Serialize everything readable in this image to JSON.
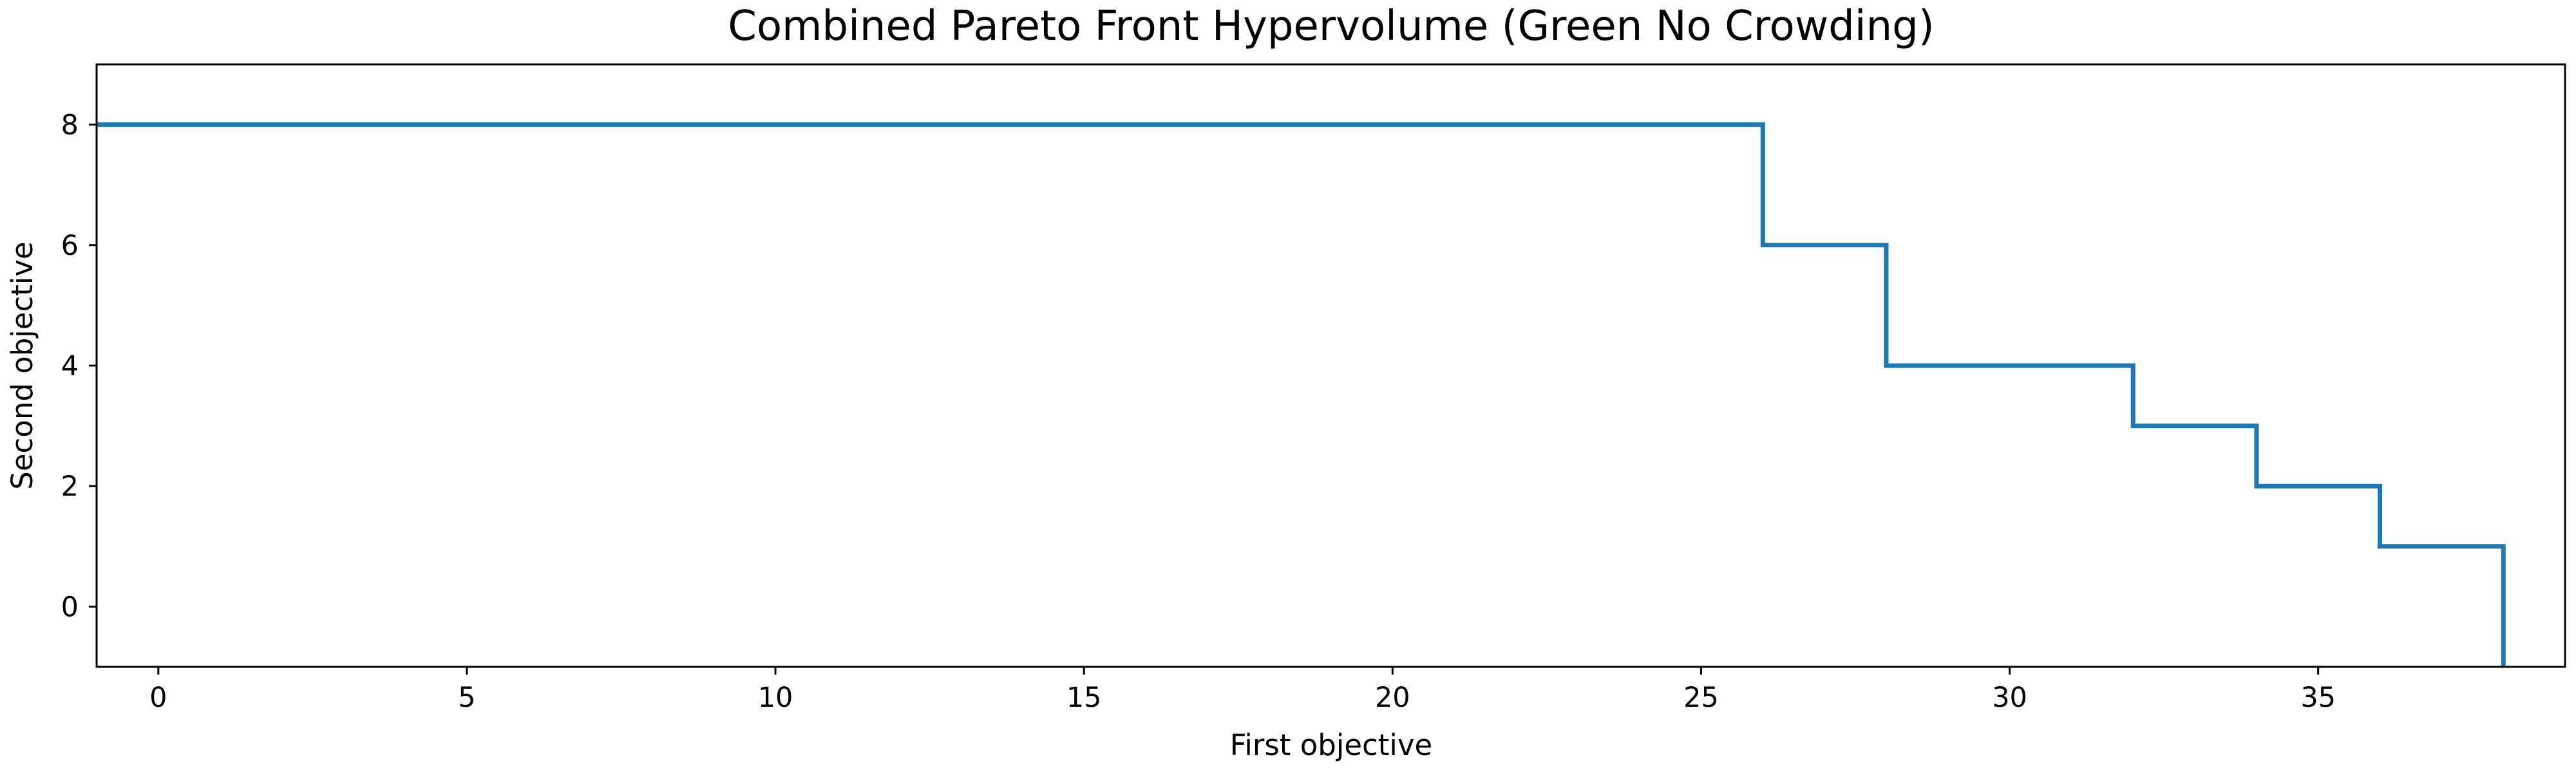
{
  "chart_data": {
    "type": "line",
    "step": "post",
    "title": "Combined Pareto Front Hypervolume (Green No Crowding)",
    "xlabel": "First objective",
    "ylabel": "Second objective",
    "xlim": [
      -1,
      39
    ],
    "ylim": [
      -1,
      9
    ],
    "xticks": [
      0,
      5,
      10,
      15,
      20,
      25,
      30,
      35
    ],
    "yticks": [
      0,
      2,
      4,
      6,
      8
    ],
    "grid": false,
    "legend": "none",
    "series": [
      {
        "color": "#1f77b4",
        "x": [
          -1,
          26,
          26,
          28,
          28,
          32,
          32,
          34,
          34,
          36,
          36,
          38,
          38
        ],
        "y": [
          8,
          8,
          6,
          6,
          4,
          4,
          3,
          3,
          2,
          2,
          1,
          1,
          -1
        ]
      }
    ]
  }
}
